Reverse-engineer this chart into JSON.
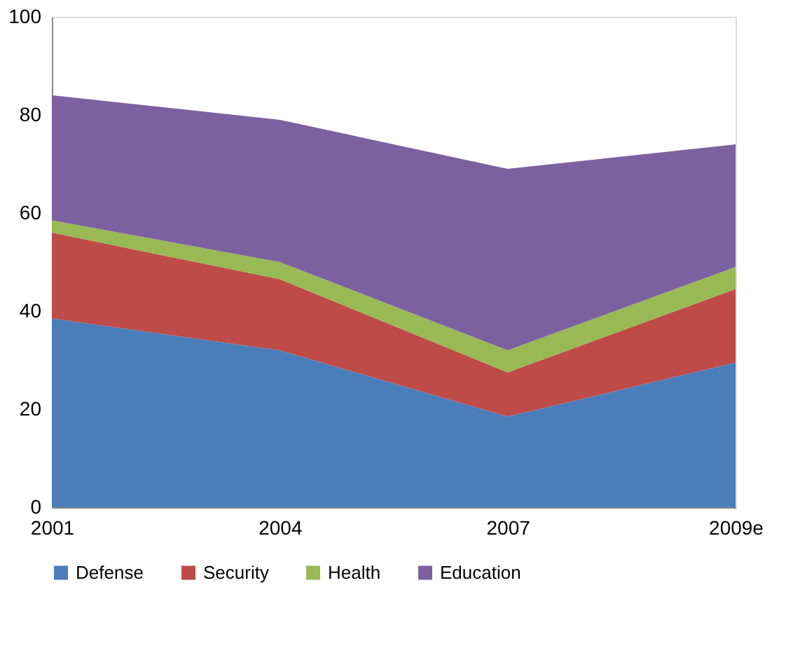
{
  "chart_data": {
    "type": "area",
    "stacked": true,
    "categories": [
      "2001",
      "2004",
      "2007",
      "2009e"
    ],
    "series": [
      {
        "name": "Defense",
        "color": "#4a7ebb",
        "values": [
          38.5,
          32,
          18.5,
          29.5
        ]
      },
      {
        "name": "Security",
        "color": "#be4b48",
        "values": [
          17.5,
          14.5,
          9,
          15
        ]
      },
      {
        "name": "Health",
        "color": "#98b954",
        "values": [
          2.5,
          3.5,
          4.5,
          4.5
        ]
      },
      {
        "name": "Education",
        "color": "#7d60a0",
        "values": [
          25.5,
          29,
          37,
          25
        ]
      }
    ],
    "ylim": [
      0,
      100
    ],
    "yticks": [
      0,
      20,
      40,
      60,
      80,
      100
    ],
    "grid": false,
    "legend": "bottom"
  }
}
